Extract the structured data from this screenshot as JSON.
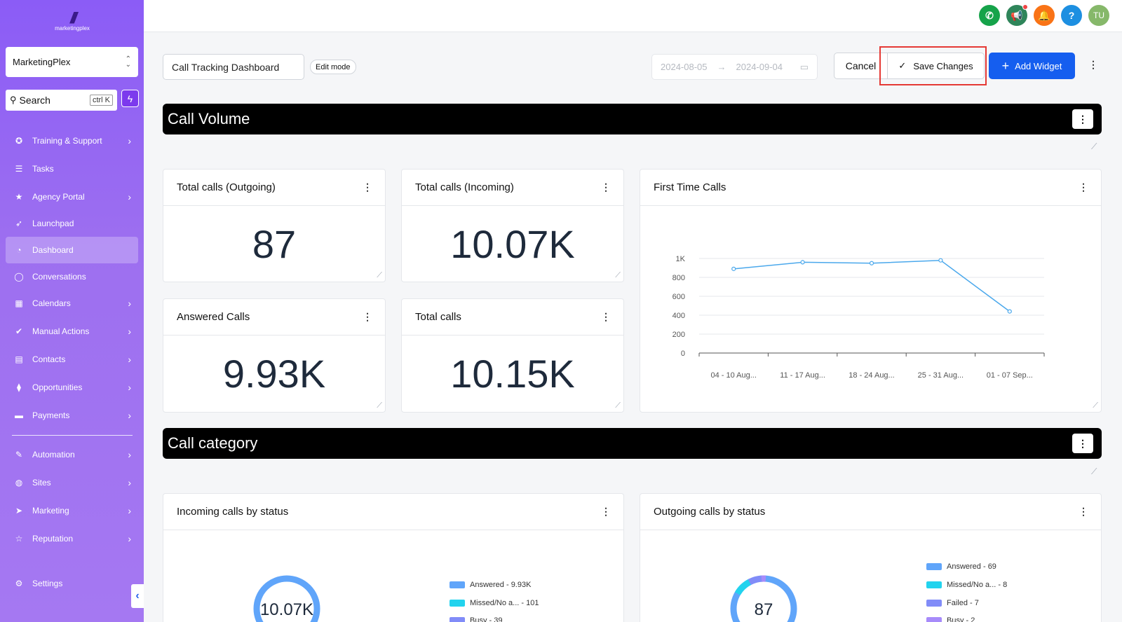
{
  "brand": {
    "logo_text": "marketingplex"
  },
  "account": {
    "name": "MarketingPlex"
  },
  "search": {
    "label": "Search",
    "shortcut": "ctrl K"
  },
  "sidebar": {
    "items": [
      {
        "label": "Training & Support",
        "icon": "support-icon",
        "has_arrow": true
      },
      {
        "label": "Tasks",
        "icon": "list-icon",
        "has_arrow": false
      },
      {
        "label": "Agency Portal",
        "icon": "star-icon",
        "has_arrow": true
      },
      {
        "label": "Launchpad",
        "icon": "rocket-icon",
        "has_arrow": false
      },
      {
        "label": "Dashboard",
        "icon": "gauge-icon",
        "has_arrow": false,
        "active": true
      },
      {
        "label": "Conversations",
        "icon": "chat-icon",
        "has_arrow": false
      },
      {
        "label": "Calendars",
        "icon": "calendar-icon",
        "has_arrow": true
      },
      {
        "label": "Manual Actions",
        "icon": "check-circle-icon",
        "has_arrow": true
      },
      {
        "label": "Contacts",
        "icon": "contact-icon",
        "has_arrow": true
      },
      {
        "label": "Opportunities",
        "icon": "funnel-icon",
        "has_arrow": true
      },
      {
        "label": "Payments",
        "icon": "card-icon",
        "has_arrow": true
      },
      {
        "label": "Automation",
        "icon": "wand-icon",
        "has_arrow": true
      },
      {
        "label": "Sites",
        "icon": "globe-icon",
        "has_arrow": true
      },
      {
        "label": "Marketing",
        "icon": "send-icon",
        "has_arrow": true
      },
      {
        "label": "Reputation",
        "icon": "star-outline-icon",
        "has_arrow": true
      }
    ],
    "settings_label": "Settings"
  },
  "topbar": {
    "icons": [
      {
        "name": "phone-icon",
        "color": "#16a34a",
        "glyph": "✆"
      },
      {
        "name": "megaphone-icon",
        "color": "#2f855a",
        "glyph": "📢"
      },
      {
        "name": "bell-icon",
        "color": "#f97316",
        "glyph": "🔔"
      },
      {
        "name": "help-icon",
        "color": "#1d8fe1",
        "glyph": "?"
      },
      {
        "name": "avatar",
        "color": "#86b86a",
        "glyph": "TU"
      }
    ]
  },
  "header": {
    "dashboard_name": "Call Tracking Dashboard",
    "mode_badge": "Edit mode",
    "date_start": "2024-08-05",
    "date_end": "2024-09-04",
    "cancel_label": "Cancel",
    "save_label": "Save Changes",
    "add_label": "Add Widget"
  },
  "sections": {
    "call_volume": "Call Volume",
    "call_category": "Call category"
  },
  "widgets": {
    "outgoing": {
      "title": "Total calls (Outgoing)",
      "value": "87"
    },
    "incoming": {
      "title": "Total calls (Incoming)",
      "value": "10.07K"
    },
    "answered": {
      "title": "Answered Calls",
      "value": "9.93K"
    },
    "total": {
      "title": "Total calls",
      "value": "10.15K"
    },
    "first_time": {
      "title": "First Time Calls"
    },
    "incoming_status": {
      "title": "Incoming calls by status",
      "center": "10.07K",
      "legend": [
        "Answered - 9.93K",
        "Missed/No a... - 101",
        "Busy - 39"
      ]
    },
    "outgoing_status": {
      "title": "Outgoing calls by status",
      "center": "87",
      "legend": [
        "Answered - 69",
        "Missed/No a... - 8",
        "Failed - 7",
        "Busy - 2"
      ]
    }
  },
  "colors": {
    "answered": "#60a5fa",
    "missed": "#22d3ee",
    "failed": "#818cf8",
    "busy": "#a78bfa",
    "line": "#4aa8ec",
    "accent": "#155eef"
  },
  "chart_data": {
    "type": "line",
    "categories": [
      "04 - 10 Aug...",
      "11 - 17 Aug...",
      "18 - 24 Aug...",
      "25 - 31 Aug...",
      "01 - 07 Sep..."
    ],
    "series": [
      {
        "values": [
          890,
          960,
          950,
          980,
          440
        ]
      }
    ],
    "y_ticks": [
      "0",
      "200",
      "400",
      "600",
      "800",
      "1K"
    ],
    "ylim": [
      0,
      1000
    ],
    "grid": true
  }
}
